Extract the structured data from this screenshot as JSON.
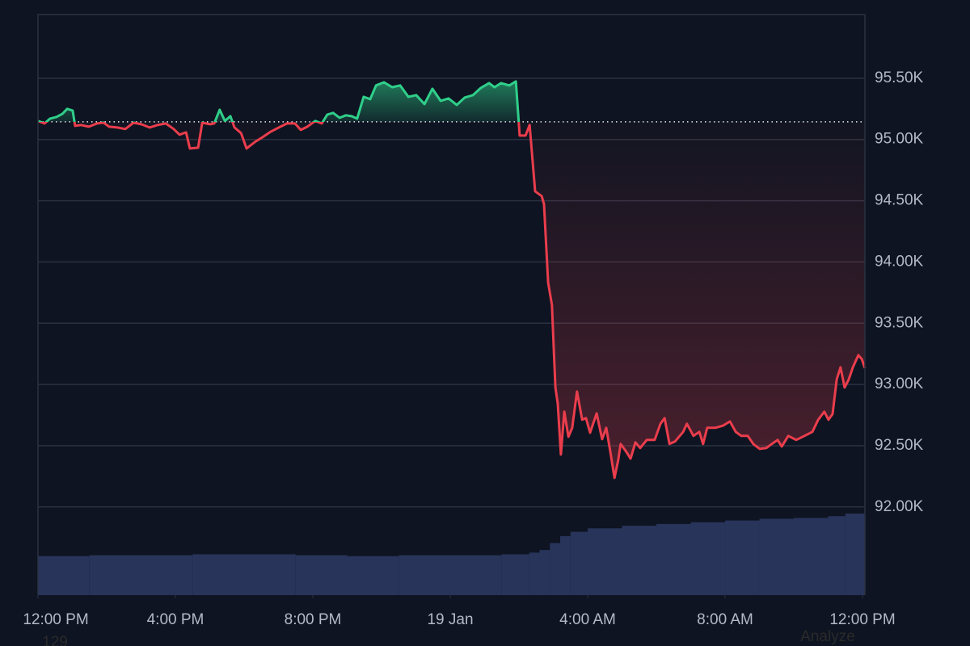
{
  "chart_data": {
    "type": "baseline-line",
    "colors": {
      "background": "#0e1421",
      "up": "#2fcf8a",
      "down": "#ea3d4c",
      "grid": "#2a3142",
      "volume": "#28345a",
      "text": "#b4b9c6"
    },
    "baseline": 95144,
    "xlim": [
      0,
      24.07
    ],
    "ylim": [
      91280,
      96020
    ],
    "xticks": [
      {
        "value": 0,
        "label": "12:00 PM"
      },
      {
        "value": 4,
        "label": "4:00 PM"
      },
      {
        "value": 8,
        "label": "8:00 PM"
      },
      {
        "value": 12,
        "label": "19 Jan"
      },
      {
        "value": 16,
        "label": "4:00 AM"
      },
      {
        "value": 20,
        "label": "8:00 AM"
      },
      {
        "value": 24,
        "label": "12:00 PM"
      }
    ],
    "yticks": [
      {
        "value": 92000,
        "label": "92.00K"
      },
      {
        "value": 92500,
        "label": "92.50K"
      },
      {
        "value": 93000,
        "label": "93.00K"
      },
      {
        "value": 93500,
        "label": "93.50K"
      },
      {
        "value": 94000,
        "label": "94.00K"
      },
      {
        "value": 94500,
        "label": "94.50K"
      },
      {
        "value": 95000,
        "label": "95.00K"
      },
      {
        "value": 95500,
        "label": "95.50K"
      }
    ],
    "grid": true,
    "x": [
      0,
      0.19,
      0.35,
      0.54,
      0.71,
      0.85,
      1.01,
      1.08,
      1.25,
      1.48,
      1.72,
      1.91,
      2.07,
      2.31,
      2.54,
      2.78,
      3.01,
      3.25,
      3.48,
      3.72,
      3.95,
      4.12,
      4.31,
      4.42,
      4.66,
      4.78,
      5.01,
      5.13,
      5.29,
      5.44,
      5.6,
      5.72,
      5.91,
      6.07,
      6.31,
      6.54,
      6.78,
      7.01,
      7.25,
      7.48,
      7.65,
      7.84,
      8.07,
      8.26,
      8.42,
      8.59,
      8.78,
      8.96,
      9.13,
      9.29,
      9.48,
      9.67,
      9.84,
      10.07,
      10.31,
      10.54,
      10.78,
      11.01,
      11.25,
      11.48,
      11.72,
      11.95,
      12.19,
      12.42,
      12.66,
      12.89,
      13.13,
      13.29,
      13.48,
      13.72,
      13.91,
      14.02,
      14.19,
      14.31,
      14.47,
      14.66,
      14.73,
      14.85,
      14.96,
      15.06,
      15.13,
      15.22,
      15.32,
      15.44,
      15.55,
      15.69,
      15.84,
      15.95,
      16.07,
      16.26,
      16.42,
      16.54,
      16.66,
      16.78,
      16.89,
      16.96,
      17.13,
      17.25,
      17.39,
      17.53,
      17.72,
      17.95,
      18.12,
      18.24,
      18.38,
      18.54,
      18.78,
      18.89,
      19.08,
      19.25,
      19.36,
      19.48,
      19.72,
      19.95,
      20.14,
      20.31,
      20.47,
      20.66,
      20.82,
      21.01,
      21.2,
      21.36,
      21.53,
      21.65,
      21.84,
      22.07,
      22.31,
      22.54,
      22.71,
      22.89,
      23.01,
      23.13,
      23.25,
      23.36,
      23.48,
      23.6,
      23.72,
      23.88,
      23.98,
      24.07
    ],
    "values": [
      95151,
      95131,
      95170,
      95184,
      95210,
      95250,
      95236,
      95111,
      95118,
      95104,
      95131,
      95137,
      95104,
      95098,
      95085,
      95137,
      95124,
      95098,
      95118,
      95131,
      95085,
      95039,
      95058,
      94926,
      94933,
      95137,
      95124,
      95131,
      95243,
      95151,
      95190,
      95098,
      95052,
      94926,
      94979,
      95019,
      95065,
      95098,
      95131,
      95131,
      95078,
      95104,
      95151,
      95131,
      95203,
      95217,
      95177,
      95197,
      95190,
      95170,
      95348,
      95329,
      95441,
      95467,
      95427,
      95441,
      95348,
      95362,
      95289,
      95414,
      95315,
      95335,
      95282,
      95342,
      95362,
      95421,
      95460,
      95427,
      95460,
      95441,
      95474,
      95032,
      95032,
      95118,
      94577,
      94538,
      94472,
      93832,
      93648,
      92975,
      92843,
      92428,
      92778,
      92573,
      92646,
      92942,
      92712,
      92725,
      92606,
      92764,
      92553,
      92646,
      92448,
      92237,
      92382,
      92514,
      92448,
      92395,
      92527,
      92481,
      92547,
      92547,
      92679,
      92725,
      92514,
      92534,
      92613,
      92679,
      92580,
      92613,
      92514,
      92646,
      92646,
      92665,
      92698,
      92613,
      92580,
      92580,
      92514,
      92474,
      92481,
      92514,
      92547,
      92494,
      92580,
      92547,
      92580,
      92613,
      92712,
      92778,
      92712,
      92758,
      93041,
      93140,
      92975,
      93041,
      93140,
      93239,
      93206,
      93133
    ],
    "volume": {
      "x": [
        0,
        1.5,
        3,
        4.5,
        6,
        7.5,
        9,
        10.5,
        12,
        13.5,
        14.3,
        14.6,
        14.9,
        15.2,
        15.5,
        16,
        17,
        18,
        19,
        20,
        21,
        22,
        23,
        23.5
      ],
      "values": [
        45,
        46,
        46,
        47,
        47,
        46,
        45,
        46,
        46,
        47,
        49,
        52,
        60,
        68,
        73,
        77,
        80,
        82,
        84,
        86,
        88,
        89,
        91,
        94
      ]
    },
    "overlay_texts": [
      "129",
      "Analyze"
    ]
  }
}
